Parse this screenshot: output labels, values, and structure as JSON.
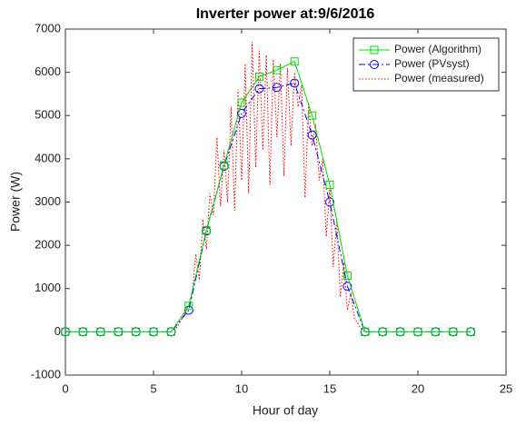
{
  "chart_data": {
    "type": "line",
    "title": "Inverter power at:9/6/2016",
    "x_label": "Hour of day",
    "y_label": "Power (W)",
    "xlim": [
      0,
      25
    ],
    "xticks": [
      0,
      5,
      10,
      15,
      20,
      25
    ],
    "ylim": [
      -1000,
      7000
    ],
    "yticks": [
      -1000,
      0,
      1000,
      2000,
      3000,
      4000,
      5000,
      6000,
      7000
    ],
    "legend": "northeast",
    "series": [
      {
        "name": "Power (Algorithm)",
        "color": "#00dd00",
        "marker": "square",
        "dash": "solid",
        "x": [
          0,
          1,
          2,
          3,
          4,
          5,
          6,
          7,
          8,
          9,
          10,
          11,
          12,
          13,
          14,
          15,
          16,
          17,
          18,
          19,
          20,
          21,
          22,
          23
        ],
        "values": [
          0,
          0,
          0,
          0,
          0,
          0,
          0,
          600,
          2350,
          3850,
          5300,
          5900,
          6050,
          6250,
          5000,
          3400,
          1300,
          0,
          0,
          0,
          0,
          0,
          0,
          0
        ]
      },
      {
        "name": "Power (PVsyst)",
        "color": "#0000ff",
        "marker": "circle",
        "dash": "dashdot",
        "x": [
          0,
          1,
          2,
          3,
          4,
          5,
          6,
          7,
          8,
          9,
          10,
          11,
          12,
          13,
          14,
          15,
          16,
          17,
          18,
          19,
          20,
          21,
          22,
          23
        ],
        "values": [
          0,
          0,
          0,
          0,
          0,
          0,
          0,
          500,
          2330,
          3830,
          5050,
          5620,
          5650,
          5750,
          4550,
          3000,
          1050,
          0,
          0,
          0,
          0,
          0,
          0,
          0
        ]
      },
      {
        "name": "Power (measured)",
        "color": "#ff0000",
        "marker": "none",
        "dash": "dotted",
        "x": [
          6.0,
          6.2,
          6.4,
          6.6,
          6.8,
          7.0,
          7.2,
          7.4,
          7.6,
          7.8,
          8.0,
          8.2,
          8.4,
          8.6,
          8.8,
          9.0,
          9.2,
          9.4,
          9.6,
          9.8,
          10.0,
          10.2,
          10.4,
          10.6,
          10.8,
          11.0,
          11.2,
          11.4,
          11.6,
          11.8,
          12.0,
          12.2,
          12.4,
          12.6,
          12.8,
          13.0,
          13.2,
          13.4,
          13.6,
          13.8,
          14.0,
          14.2,
          14.4,
          14.6,
          14.8,
          15.0,
          15.2,
          15.4,
          15.6,
          15.8,
          16.0,
          16.2,
          16.4,
          16.6,
          16.8,
          17.0
        ],
        "values": [
          0,
          50,
          150,
          300,
          450,
          600,
          900,
          1800,
          1200,
          2600,
          1900,
          3200,
          2700,
          4500,
          2900,
          4200,
          3000,
          5200,
          2800,
          5600,
          3500,
          6200,
          3200,
          6700,
          3800,
          6500,
          4200,
          6400,
          3400,
          6300,
          4500,
          6200,
          3600,
          6100,
          4300,
          6000,
          5200,
          5700,
          3100,
          5300,
          4300,
          4800,
          3500,
          4000,
          2200,
          3300,
          1500,
          2600,
          800,
          1600,
          500,
          900,
          300,
          200,
          50,
          0
        ]
      }
    ]
  }
}
